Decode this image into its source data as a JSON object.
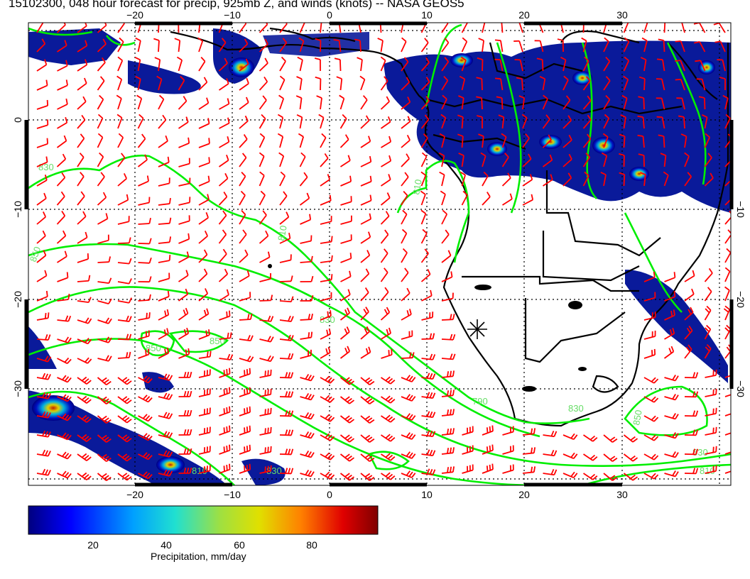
{
  "title": "15102300, 048 hour forecast for precip, 925mb Z, and winds (knots) -- NASA GEOS5",
  "axes": {
    "top_lon_labels": [
      "−20",
      "−10",
      "0",
      "10",
      "20",
      "30"
    ],
    "bottom_lon_labels": [
      "−20",
      "−10",
      "0",
      "10",
      "20",
      "30"
    ],
    "left_lat_labels": [
      "0",
      "−10",
      "−20",
      "−30"
    ],
    "right_lat_labels": [
      "−10",
      "−20",
      "−30"
    ]
  },
  "contour_labels": [
    "810",
    "830",
    "850",
    "850",
    "830",
    "810",
    "790",
    "830",
    "850",
    "810",
    "830",
    "810",
    "850",
    "830"
  ],
  "colorbar": {
    "tick_labels": [
      "20",
      "40",
      "60",
      "80"
    ],
    "title": "Precipitation, mm/day",
    "min": 0,
    "max": 100
  },
  "colors": {
    "wind_barbs": "#ff0000",
    "contours": "#00ee00",
    "coastlines": "#000000",
    "precip_low": "#00007f",
    "precip_high": "#7f0000"
  }
}
